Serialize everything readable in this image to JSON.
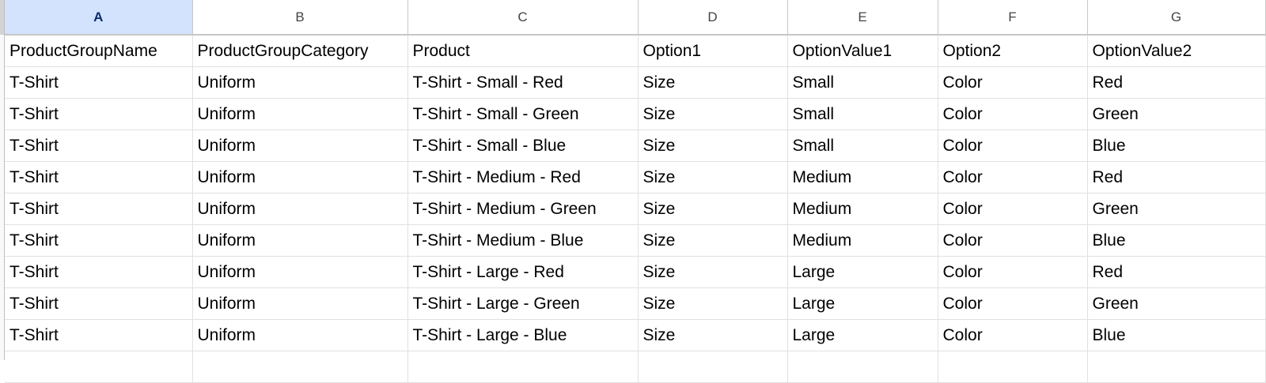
{
  "columns": [
    "A",
    "B",
    "C",
    "D",
    "E",
    "F",
    "G"
  ],
  "selected_column": "A",
  "rows": [
    [
      "ProductGroupName",
      "ProductGroupCategory",
      "Product",
      "Option1",
      "OptionValue1",
      "Option2",
      "OptionValue2"
    ],
    [
      "T-Shirt",
      "Uniform",
      "T-Shirt - Small - Red",
      "Size",
      "Small",
      "Color",
      "Red"
    ],
    [
      "T-Shirt",
      "Uniform",
      "T-Shirt - Small - Green",
      "Size",
      "Small",
      "Color",
      "Green"
    ],
    [
      "T-Shirt",
      "Uniform",
      "T-Shirt - Small - Blue",
      "Size",
      "Small",
      "Color",
      "Blue"
    ],
    [
      "T-Shirt",
      "Uniform",
      "T-Shirt - Medium - Red",
      "Size",
      "Medium",
      "Color",
      "Red"
    ],
    [
      "T-Shirt",
      "Uniform",
      "T-Shirt - Medium - Green",
      "Size",
      "Medium",
      "Color",
      "Green"
    ],
    [
      "T-Shirt",
      "Uniform",
      "T-Shirt - Medium - Blue",
      "Size",
      "Medium",
      "Color",
      "Blue"
    ],
    [
      "T-Shirt",
      "Uniform",
      "T-Shirt - Large - Red",
      "Size",
      "Large",
      "Color",
      "Red"
    ],
    [
      "T-Shirt",
      "Uniform",
      "T-Shirt - Large - Green",
      "Size",
      "Large",
      "Color",
      "Green"
    ],
    [
      "T-Shirt",
      "Uniform",
      "T-Shirt - Large - Blue",
      "Size",
      "Large",
      "Color",
      "Blue"
    ],
    [
      "",
      "",
      "",
      "",
      "",
      "",
      ""
    ]
  ],
  "colors": {
    "selected_header_bg": "#d3e3fd",
    "selected_header_text": "#0b2c6b",
    "grid": "#e1e1e1"
  }
}
